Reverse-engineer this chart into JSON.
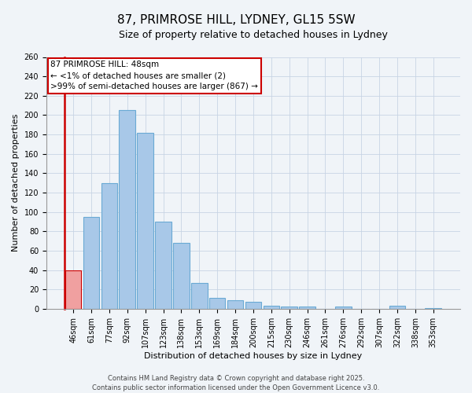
{
  "title": "87, PRIMROSE HILL, LYDNEY, GL15 5SW",
  "subtitle": "Size of property relative to detached houses in Lydney",
  "xlabel": "Distribution of detached houses by size in Lydney",
  "ylabel": "Number of detached properties",
  "bar_labels": [
    "46sqm",
    "61sqm",
    "77sqm",
    "92sqm",
    "107sqm",
    "123sqm",
    "138sqm",
    "153sqm",
    "169sqm",
    "184sqm",
    "200sqm",
    "215sqm",
    "230sqm",
    "246sqm",
    "261sqm",
    "276sqm",
    "292sqm",
    "307sqm",
    "322sqm",
    "338sqm",
    "353sqm"
  ],
  "bar_values": [
    40,
    95,
    130,
    205,
    182,
    90,
    68,
    27,
    11,
    9,
    7,
    3,
    2,
    2,
    0,
    2,
    0,
    0,
    3,
    0,
    1
  ],
  "bar_color": "#a8c8e8",
  "bar_edge_color": "#6aaad4",
  "highlight_bar_color": "#f0a0a0",
  "highlight_bar_edge_color": "#cc0000",
  "highlight_index": 0,
  "ylim": [
    0,
    260
  ],
  "yticks": [
    0,
    20,
    40,
    60,
    80,
    100,
    120,
    140,
    160,
    180,
    200,
    220,
    240,
    260
  ],
  "annotation_box_text": "87 PRIMROSE HILL: 48sqm\n← <1% of detached houses are smaller (2)\n>99% of semi-detached houses are larger (867) →",
  "annotation_box_color": "#ffffff",
  "annotation_box_edge_color": "#cc0000",
  "footer_line1": "Contains HM Land Registry data © Crown copyright and database right 2025.",
  "footer_line2": "Contains public sector information licensed under the Open Government Licence v3.0.",
  "background_color": "#f0f4f8",
  "plot_bg_color": "#f0f4f8",
  "grid_color": "#c8d4e4",
  "title_fontsize": 11,
  "subtitle_fontsize": 9,
  "label_fontsize": 8,
  "tick_fontsize": 7,
  "annotation_fontsize": 7.5,
  "footer_fontsize": 6
}
